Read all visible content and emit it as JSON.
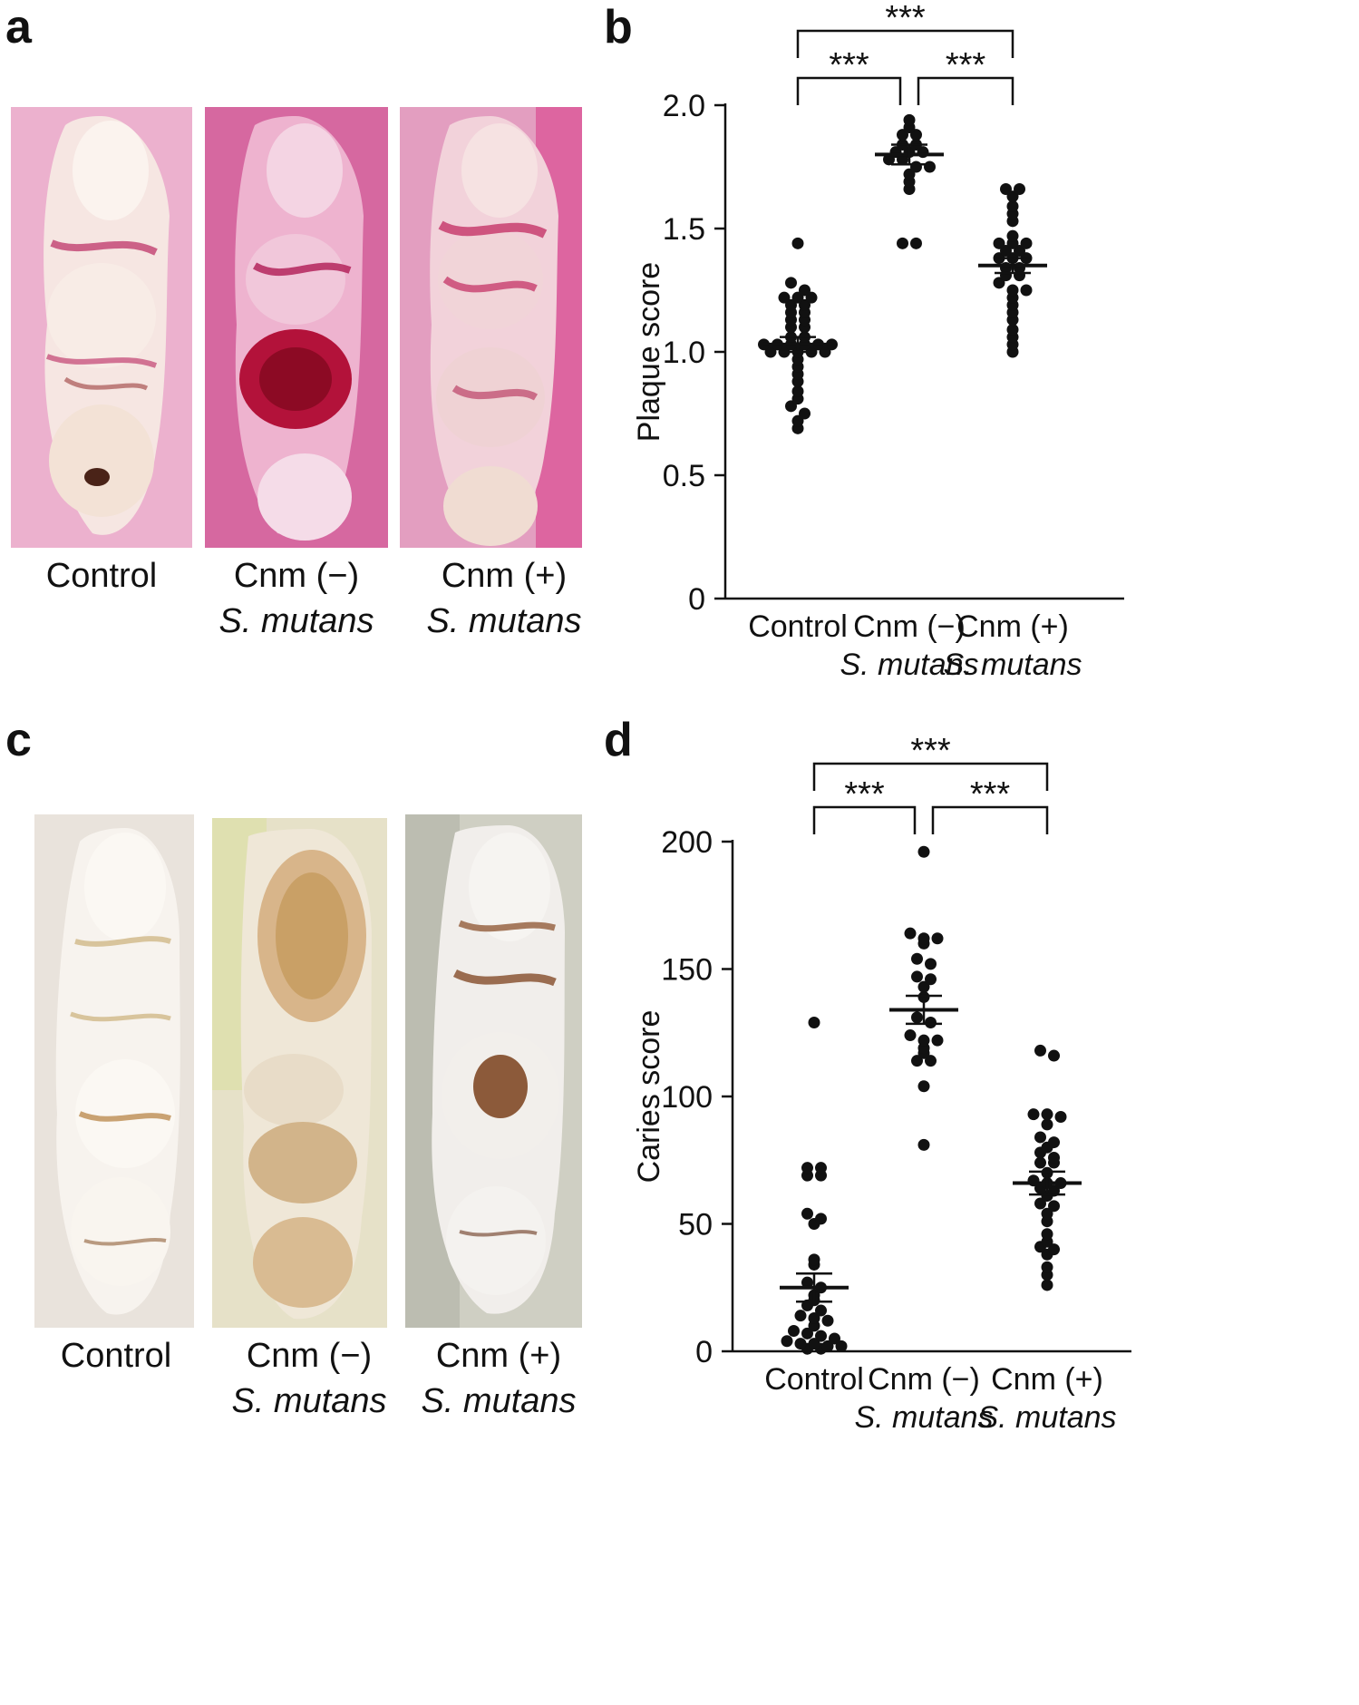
{
  "figure": {
    "panels": {
      "a": {
        "letter": "a",
        "photos": [
          {
            "caption_line1": "Control",
            "caption_line2": ""
          },
          {
            "caption_line1": "Cnm (−)",
            "caption_line2": "S. mutans"
          },
          {
            "caption_line1": "Cnm (+)",
            "caption_line2": "S. mutans"
          }
        ]
      },
      "b": {
        "letter": "b"
      },
      "c": {
        "letter": "c",
        "photos": [
          {
            "caption_line1": "Control",
            "caption_line2": ""
          },
          {
            "caption_line1": "Cnm (−)",
            "caption_line2": "S. mutans"
          },
          {
            "caption_line1": "Cnm (+)",
            "caption_line2": "S. mutans"
          }
        ]
      },
      "d": {
        "letter": "d"
      }
    }
  },
  "chart_data": [
    {
      "panel": "b",
      "type": "scatter",
      "ylabel": "Plaque score",
      "ylim": [
        0,
        2.0
      ],
      "yticks": [
        0,
        0.5,
        1.0,
        1.5,
        2.0
      ],
      "ytick_labels": [
        "0",
        "0.5",
        "1.0",
        "1.5",
        "2.0"
      ],
      "categories": [
        {
          "line1": "Control",
          "line2": ""
        },
        {
          "line1": "Cnm (−)",
          "line2": "S. mutans"
        },
        {
          "line1": "Cnm (+)",
          "line2": "S. mutans"
        }
      ],
      "groups": [
        {
          "mean": 1.03,
          "sem": 0.03,
          "values": [
            1.44,
            1.28,
            1.25,
            1.22,
            1.22,
            1.22,
            1.19,
            1.19,
            1.16,
            1.16,
            1.13,
            1.13,
            1.1,
            1.1,
            1.06,
            1.06,
            1.03,
            1.03,
            1.03,
            1.03,
            1.03,
            1.03,
            1.0,
            1.0,
            1.0,
            1.0,
            1.0,
            0.97,
            0.94,
            0.91,
            0.88,
            0.84,
            0.81,
            0.78,
            0.75,
            0.72,
            0.69
          ]
        },
        {
          "mean": 1.8,
          "sem": 0.04,
          "values": [
            1.94,
            1.91,
            1.88,
            1.88,
            1.84,
            1.84,
            1.81,
            1.81,
            1.81,
            1.78,
            1.78,
            1.75,
            1.75,
            1.72,
            1.69,
            1.66,
            1.44,
            1.44
          ]
        },
        {
          "mean": 1.35,
          "sem": 0.03,
          "values": [
            1.66,
            1.66,
            1.63,
            1.59,
            1.56,
            1.53,
            1.47,
            1.44,
            1.44,
            1.44,
            1.41,
            1.41,
            1.38,
            1.38,
            1.38,
            1.34,
            1.34,
            1.31,
            1.31,
            1.28,
            1.25,
            1.25,
            1.22,
            1.19,
            1.16,
            1.13,
            1.09,
            1.06,
            1.03,
            1.0
          ]
        }
      ],
      "significance": [
        {
          "from": 0,
          "to": 1,
          "label": "***",
          "level": 1
        },
        {
          "from": 1,
          "to": 2,
          "label": "***",
          "level": 1
        },
        {
          "from": 0,
          "to": 2,
          "label": "***",
          "level": 2
        }
      ]
    },
    {
      "panel": "d",
      "type": "scatter",
      "ylabel": "Caries score",
      "ylim": [
        0,
        200
      ],
      "yticks": [
        0,
        50,
        100,
        150,
        200
      ],
      "ytick_labels": [
        "0",
        "50",
        "100",
        "150",
        "200"
      ],
      "categories": [
        {
          "line1": "Control",
          "line2": ""
        },
        {
          "line1": "Cnm (−)",
          "line2": "S. mutans"
        },
        {
          "line1": "Cnm (+)",
          "line2": "S. mutans"
        }
      ],
      "groups": [
        {
          "mean": 25,
          "sem": 5.5,
          "values": [
            129,
            72,
            72,
            69,
            69,
            54,
            52,
            50,
            36,
            34,
            27,
            25,
            22,
            20,
            18,
            16,
            14,
            13,
            12,
            10,
            8,
            7,
            6,
            5,
            4,
            3,
            3,
            2,
            2,
            1,
            1
          ]
        },
        {
          "mean": 134,
          "sem": 5.5,
          "values": [
            196,
            164,
            162,
            162,
            160,
            154,
            152,
            147,
            146,
            143,
            139,
            131,
            129,
            124,
            122,
            122,
            119,
            117,
            114,
            114,
            104,
            81
          ]
        },
        {
          "mean": 66,
          "sem": 4.5,
          "values": [
            118,
            116,
            93,
            93,
            92,
            89,
            84,
            82,
            80,
            78,
            76,
            74,
            74,
            70,
            67,
            66,
            66,
            64,
            63,
            61,
            58,
            57,
            54,
            51,
            46,
            43,
            41,
            40,
            38,
            33,
            30,
            26
          ]
        }
      ],
      "significance": [
        {
          "from": 0,
          "to": 1,
          "label": "***",
          "level": 1
        },
        {
          "from": 1,
          "to": 2,
          "label": "***",
          "level": 1
        },
        {
          "from": 0,
          "to": 2,
          "label": "***",
          "level": 2
        }
      ]
    }
  ]
}
